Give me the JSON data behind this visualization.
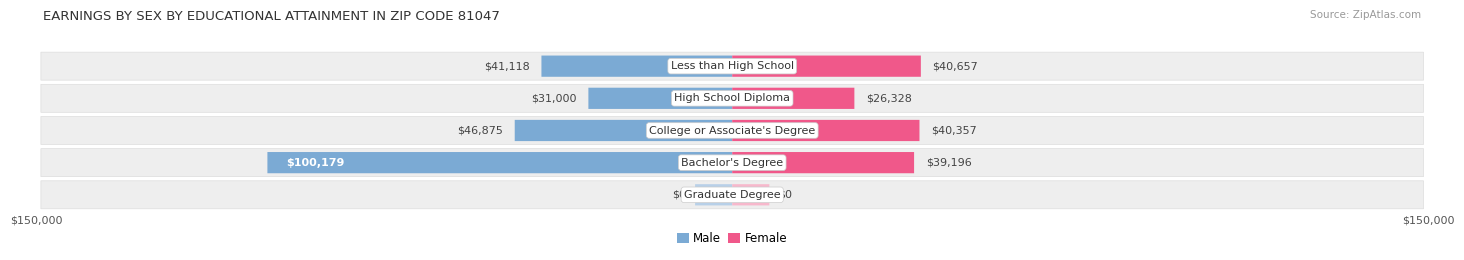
{
  "title": "EARNINGS BY SEX BY EDUCATIONAL ATTAINMENT IN ZIP CODE 81047",
  "source": "Source: ZipAtlas.com",
  "categories": [
    "Less than High School",
    "High School Diploma",
    "College or Associate's Degree",
    "Bachelor's Degree",
    "Graduate Degree"
  ],
  "male_values": [
    41118,
    31000,
    46875,
    100179,
    0
  ],
  "female_values": [
    40657,
    26328,
    40357,
    39196,
    0
  ],
  "male_color": "#7baad4",
  "female_color": "#f0588a",
  "male_color_zero": "#b8d0e8",
  "female_color_zero": "#f7b8cc",
  "row_bg_color": "#eeeeee",
  "row_bg_edge": "#dddddd",
  "label_bg_color": "#ffffff",
  "max_value": 150000,
  "zero_stub": 8000,
  "xlabel_left": "$150,000",
  "xlabel_right": "$150,000",
  "title_fontsize": 9.5,
  "label_fontsize": 8,
  "value_fontsize": 8,
  "tick_fontsize": 8,
  "source_fontsize": 7.5,
  "background_color": "#ffffff",
  "bar_height": 0.65
}
